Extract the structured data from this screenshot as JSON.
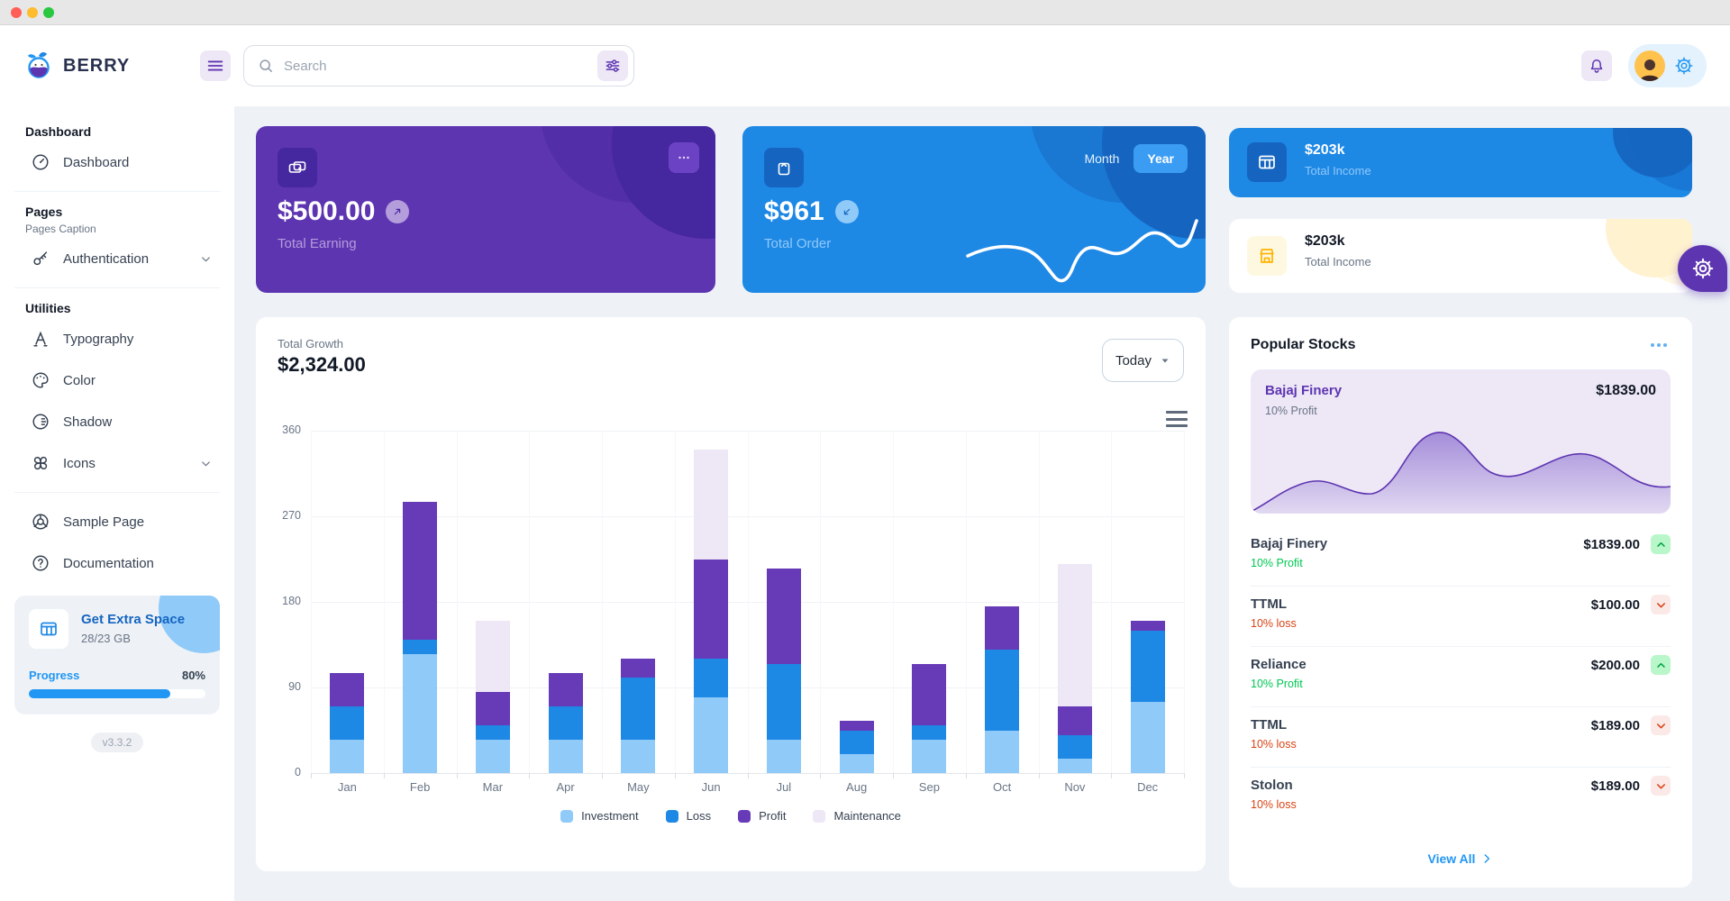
{
  "window": {
    "traffic_lights": [
      "close",
      "minimize",
      "zoom"
    ]
  },
  "header": {
    "brand": "BERRY",
    "search": {
      "placeholder": "Search"
    }
  },
  "sidebar": {
    "sections": [
      {
        "header": "Dashboard",
        "items": [
          {
            "label": "Dashboard",
            "icon": "dashboard-icon"
          }
        ]
      },
      {
        "header": "Pages",
        "caption": "Pages Caption",
        "items": [
          {
            "label": "Authentication",
            "icon": "key-icon",
            "chevron": "down"
          }
        ]
      },
      {
        "header": "Utilities",
        "items": [
          {
            "label": "Typography",
            "icon": "typography-icon"
          },
          {
            "label": "Color",
            "icon": "color-icon"
          },
          {
            "label": "Shadow",
            "icon": "shadow-icon"
          },
          {
            "label": "Icons",
            "icon": "windmill-icon",
            "chevron": "down"
          }
        ]
      },
      {
        "items": [
          {
            "label": "Sample Page",
            "icon": "browser-icon"
          },
          {
            "label": "Documentation",
            "icon": "help-icon"
          }
        ]
      }
    ],
    "menu_card": {
      "title": "Get Extra Space",
      "subtitle": "28/23 GB",
      "progress_label": "Progress",
      "progress_value": "80%",
      "progress_pct": 80
    },
    "version": "v3.3.2"
  },
  "cards": {
    "earning": {
      "amount": "$500.00",
      "label": "Total Earning"
    },
    "order": {
      "amount": "$961",
      "label": "Total Order",
      "month_label": "Month",
      "year_label": "Year",
      "active_period": "Year"
    },
    "income_dark": {
      "amount": "$203k",
      "label": "Total Income"
    },
    "income_light": {
      "amount": "$203k",
      "label": "Total Income"
    }
  },
  "growth": {
    "title": "Total Growth",
    "amount": "$2,324.00",
    "range_label": "Today"
  },
  "stocks": {
    "title": "Popular Stocks",
    "featured": {
      "name": "Bajaj Finery",
      "sub": "10% Profit",
      "price": "$1839.00"
    },
    "rows": [
      {
        "name": "Bajaj Finery",
        "sub": "10% Profit",
        "price": "$1839.00",
        "trend": "up"
      },
      {
        "name": "TTML",
        "sub": "10% loss",
        "price": "$100.00",
        "trend": "down"
      },
      {
        "name": "Reliance",
        "sub": "10% Profit",
        "price": "$200.00",
        "trend": "up"
      },
      {
        "name": "TTML",
        "sub": "10% loss",
        "price": "$189.00",
        "trend": "down"
      },
      {
        "name": "Stolon",
        "sub": "10% loss",
        "price": "$189.00",
        "trend": "down"
      }
    ],
    "view_all_label": "View All"
  },
  "chart_data": [
    {
      "type": "bar",
      "stacked": true,
      "title": "Total Growth",
      "categories": [
        "Jan",
        "Feb",
        "Mar",
        "Apr",
        "May",
        "Jun",
        "Jul",
        "Aug",
        "Sep",
        "Oct",
        "Nov",
        "Dec"
      ],
      "series": [
        {
          "name": "Investment",
          "color": "#90caf9",
          "values": [
            35,
            125,
            35,
            35,
            35,
            80,
            35,
            20,
            35,
            45,
            15,
            75
          ]
        },
        {
          "name": "Loss",
          "color": "#1e88e5",
          "values": [
            35,
            15,
            15,
            35,
            65,
            40,
            80,
            25,
            15,
            85,
            25,
            75
          ]
        },
        {
          "name": "Profit",
          "color": "#673ab7",
          "values": [
            35,
            145,
            35,
            35,
            20,
            105,
            100,
            10,
            65,
            45,
            30,
            10
          ]
        },
        {
          "name": "Maintenance",
          "color": "#ede7f6",
          "values": [
            0,
            0,
            75,
            0,
            0,
            115,
            0,
            0,
            0,
            0,
            150,
            0
          ]
        }
      ],
      "ylim": [
        0,
        360
      ],
      "yticks": [
        0,
        90,
        180,
        270,
        360
      ],
      "grid": true,
      "legend_position": "bottom"
    },
    {
      "type": "line",
      "title": "Total Order sparkline",
      "axes": "hidden",
      "values_relative_0_100": [
        45,
        52,
        48,
        30,
        16,
        42,
        55,
        52,
        55,
        68,
        64,
        58,
        66,
        78,
        72,
        60,
        70,
        88
      ],
      "color": "#ffffff"
    },
    {
      "type": "area",
      "title": "Bajaj Finery trend",
      "axes": "hidden",
      "values_relative_0_100": [
        2,
        15,
        30,
        34,
        30,
        24,
        21,
        40,
        80,
        95,
        88,
        70,
        52,
        45,
        42,
        48,
        58,
        64,
        60,
        48,
        38,
        35
      ],
      "color": "#5e35b1"
    }
  ],
  "colors": {
    "primary": "#2196f3",
    "primary_dark": "#1e88e5",
    "primary_800": "#1565c0",
    "secondary": "#673ab7",
    "secondary_dark": "#5e35b1",
    "secondary_800": "#4527a0",
    "secondary_light": "#ede7f6",
    "success": "#00c853",
    "error_orange": "#d84315",
    "warning": "#ffb300",
    "page_bg": "#eef2f6"
  }
}
